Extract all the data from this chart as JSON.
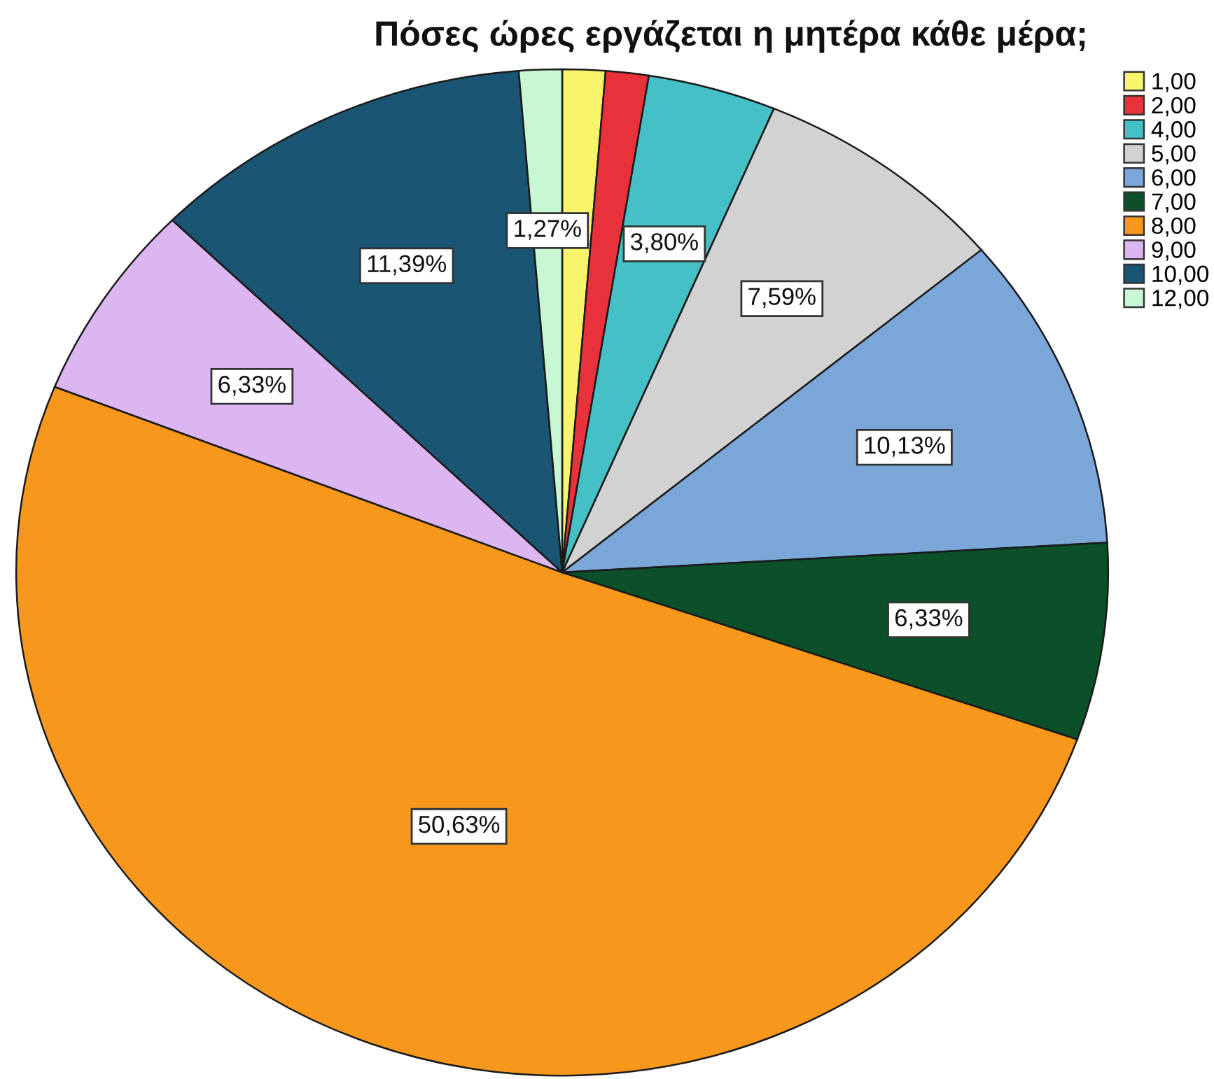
{
  "chart_data": {
    "type": "pie",
    "title": "Πόσες ώρες εργάζεται η μητέρα κάθε μέρα;",
    "categories": [
      "1,00",
      "2,00",
      "4,00",
      "5,00",
      "6,00",
      "7,00",
      "8,00",
      "9,00",
      "10,00",
      "12,00"
    ],
    "values": [
      1.27,
      1.27,
      3.8,
      7.59,
      10.13,
      6.33,
      50.63,
      6.33,
      11.39,
      1.27
    ],
    "colors": [
      "#f8f46c",
      "#e8313a",
      "#44c0c6",
      "#d2d2d2",
      "#7aa7d8",
      "#0b5028",
      "#f7981d",
      "#dbb6f0",
      "#1a5573",
      "#c8f7d4"
    ],
    "value_labels": [
      null,
      null,
      "3,80%",
      "7,59%",
      "10,13%",
      "6,33%",
      "50,63%",
      "6,33%",
      "11,39%",
      "1,27%"
    ],
    "legend": "top right"
  }
}
